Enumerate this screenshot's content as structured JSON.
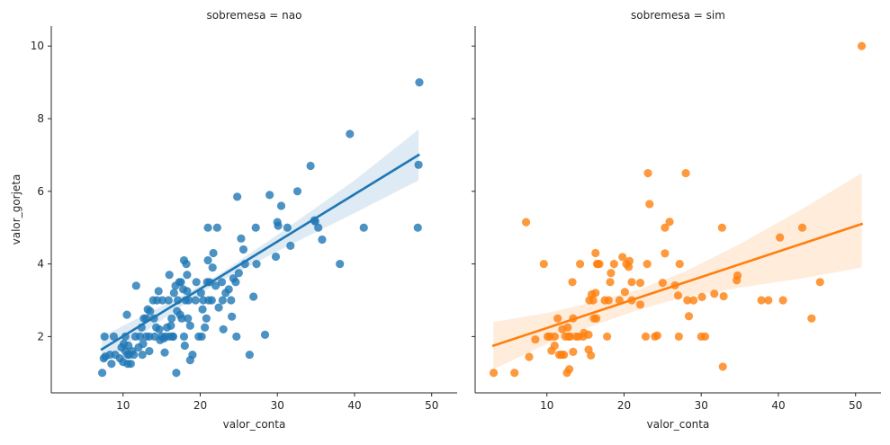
{
  "chart_data": {
    "type": "scatter",
    "layout": "facet-grid-1x2 with linear regression fit and confidence band",
    "xlabel": "valor_conta",
    "ylabel": "valor_gorjeta",
    "xlim": [
      0.7,
      53.3
    ],
    "ylim": [
      0.45,
      10.55
    ],
    "x_ticks": [
      10,
      20,
      30,
      40,
      50
    ],
    "y_ticks": [
      2,
      4,
      6,
      8,
      10
    ],
    "shared_y": true,
    "panels": [
      {
        "title": "sobremesa = nao",
        "color": "#1f77b4",
        "regression": {
          "x_start": 7.25,
          "y_start": 1.65,
          "x_end": 48.3,
          "y_end": 7.0
        },
        "ci_band": [
          {
            "x": 7.25,
            "lo": 1.3,
            "hi": 2.0
          },
          {
            "x": 17.0,
            "lo": 2.75,
            "hi": 3.05
          },
          {
            "x": 22.0,
            "lo": 3.45,
            "hi": 3.65
          },
          {
            "x": 30.0,
            "lo": 4.35,
            "hi": 4.8
          },
          {
            "x": 40.0,
            "lo": 5.4,
            "hi": 6.3
          },
          {
            "x": 48.3,
            "lo": 6.3,
            "hi": 7.7
          }
        ],
        "points": [
          [
            7.3,
            1.0
          ],
          [
            7.5,
            1.4
          ],
          [
            7.6,
            2.0
          ],
          [
            7.7,
            1.45
          ],
          [
            8.3,
            1.5
          ],
          [
            8.5,
            1.25
          ],
          [
            8.8,
            2.0
          ],
          [
            9.0,
            1.5
          ],
          [
            9.6,
            1.4
          ],
          [
            9.8,
            1.7
          ],
          [
            10.0,
            1.3
          ],
          [
            10.1,
            1.8
          ],
          [
            10.3,
            1.6
          ],
          [
            10.3,
            2.0
          ],
          [
            10.5,
            2.6
          ],
          [
            10.6,
            1.25
          ],
          [
            10.6,
            1.5
          ],
          [
            10.7,
            1.75
          ],
          [
            10.8,
            1.5
          ],
          [
            11.0,
            1.25
          ],
          [
            11.2,
            1.6
          ],
          [
            11.4,
            1.5
          ],
          [
            11.6,
            2.0
          ],
          [
            11.7,
            3.4
          ],
          [
            12.0,
            1.7
          ],
          [
            12.2,
            2.0
          ],
          [
            12.4,
            2.25
          ],
          [
            12.5,
            1.5
          ],
          [
            12.6,
            1.8
          ],
          [
            12.7,
            2.5
          ],
          [
            13.0,
            2.0
          ],
          [
            13.0,
            2.5
          ],
          [
            13.2,
            2.75
          ],
          [
            13.4,
            2.0
          ],
          [
            13.4,
            1.6
          ],
          [
            13.5,
            2.7
          ],
          [
            13.9,
            3.0
          ],
          [
            14.0,
            2.5
          ],
          [
            14.1,
            2.0
          ],
          [
            14.3,
            2.25
          ],
          [
            14.4,
            3.0
          ],
          [
            14.6,
            3.25
          ],
          [
            14.7,
            2.2
          ],
          [
            14.8,
            1.9
          ],
          [
            15.0,
            2.0
          ],
          [
            15.1,
            3.0
          ],
          [
            15.3,
            1.95
          ],
          [
            15.4,
            1.56
          ],
          [
            15.5,
            2.0
          ],
          [
            15.7,
            2.25
          ],
          [
            15.9,
            3.0
          ],
          [
            16.0,
            2.0
          ],
          [
            16.0,
            3.7
          ],
          [
            16.2,
            2.3
          ],
          [
            16.3,
            2.5
          ],
          [
            16.4,
            2.0
          ],
          [
            16.5,
            2.0
          ],
          [
            16.6,
            3.2
          ],
          [
            16.8,
            3.4
          ],
          [
            16.9,
            1.0
          ],
          [
            17.0,
            2.7
          ],
          [
            17.1,
            3.0
          ],
          [
            17.3,
            3.5
          ],
          [
            17.4,
            2.6
          ],
          [
            17.5,
            3.5
          ],
          [
            17.6,
            2.5
          ],
          [
            17.8,
            3.3
          ],
          [
            17.9,
            2.0
          ],
          [
            17.9,
            4.1
          ],
          [
            18.0,
            1.75
          ],
          [
            18.1,
            3.0
          ],
          [
            18.2,
            4.0
          ],
          [
            18.3,
            3.7
          ],
          [
            18.3,
            3.25
          ],
          [
            18.4,
            2.5
          ],
          [
            18.5,
            3.0
          ],
          [
            18.7,
            2.3
          ],
          [
            18.7,
            1.35
          ],
          [
            19.0,
            1.5
          ],
          [
            19.4,
            3.0
          ],
          [
            19.5,
            3.5
          ],
          [
            19.8,
            2.0
          ],
          [
            20.1,
            3.2
          ],
          [
            20.2,
            2.0
          ],
          [
            20.3,
            2.75
          ],
          [
            20.4,
            3.0
          ],
          [
            20.6,
            2.25
          ],
          [
            20.8,
            2.5
          ],
          [
            20.9,
            3.5
          ],
          [
            21.0,
            5.0
          ],
          [
            21.0,
            4.1
          ],
          [
            21.1,
            3.0
          ],
          [
            21.2,
            3.5
          ],
          [
            21.5,
            3.0
          ],
          [
            21.6,
            3.9
          ],
          [
            21.7,
            4.3
          ],
          [
            22.0,
            3.4
          ],
          [
            22.2,
            5.0
          ],
          [
            22.4,
            2.8
          ],
          [
            22.8,
            3.5
          ],
          [
            22.9,
            3.0
          ],
          [
            23.0,
            2.2
          ],
          [
            23.3,
            3.2
          ],
          [
            23.7,
            3.3
          ],
          [
            24.0,
            3.0
          ],
          [
            24.1,
            2.55
          ],
          [
            24.3,
            3.6
          ],
          [
            24.6,
            3.5
          ],
          [
            24.7,
            2.0
          ],
          [
            24.8,
            5.85
          ],
          [
            25.0,
            3.75
          ],
          [
            25.3,
            4.7
          ],
          [
            25.6,
            4.4
          ],
          [
            25.8,
            4.0
          ],
          [
            26.4,
            1.5
          ],
          [
            26.9,
            3.1
          ],
          [
            27.2,
            5.0
          ],
          [
            27.3,
            4.0
          ],
          [
            28.4,
            2.05
          ],
          [
            29.0,
            5.9
          ],
          [
            29.8,
            4.2
          ],
          [
            30.0,
            5.15
          ],
          [
            30.1,
            5.05
          ],
          [
            30.5,
            5.6
          ],
          [
            31.3,
            5.0
          ],
          [
            31.7,
            4.5
          ],
          [
            32.6,
            6.0
          ],
          [
            34.3,
            6.7
          ],
          [
            34.8,
            5.2
          ],
          [
            34.9,
            5.17
          ],
          [
            35.3,
            5.0
          ],
          [
            35.8,
            4.67
          ],
          [
            38.1,
            4.0
          ],
          [
            39.4,
            7.58
          ],
          [
            41.2,
            5.0
          ],
          [
            48.2,
            5.0
          ],
          [
            48.3,
            6.73
          ],
          [
            48.4,
            9.0
          ]
        ]
      },
      {
        "title": "sobremesa = sim",
        "color": "#ff7f0e",
        "regression": {
          "x_start": 3.07,
          "y_start": 1.75,
          "x_end": 50.8,
          "y_end": 5.1
        },
        "ci_band": [
          {
            "x": 3.07,
            "lo": 1.1,
            "hi": 2.4
          },
          {
            "x": 10.0,
            "lo": 1.8,
            "hi": 2.65
          },
          {
            "x": 16.0,
            "lo": 2.3,
            "hi": 2.95
          },
          {
            "x": 22.0,
            "lo": 2.75,
            "hi": 3.3
          },
          {
            "x": 28.0,
            "lo": 3.1,
            "hi": 3.8
          },
          {
            "x": 35.0,
            "lo": 3.35,
            "hi": 4.55
          },
          {
            "x": 43.0,
            "lo": 3.6,
            "hi": 5.5
          },
          {
            "x": 50.8,
            "lo": 3.9,
            "hi": 6.5
          }
        ],
        "points": [
          [
            3.1,
            1.0
          ],
          [
            5.8,
            1.0
          ],
          [
            7.3,
            5.15
          ],
          [
            7.7,
            1.44
          ],
          [
            8.5,
            1.92
          ],
          [
            9.6,
            4.0
          ],
          [
            10.1,
            2.0
          ],
          [
            10.4,
            2.0
          ],
          [
            10.6,
            1.61
          ],
          [
            11.0,
            2.0
          ],
          [
            11.0,
            1.75
          ],
          [
            11.4,
            2.5
          ],
          [
            11.6,
            1.5
          ],
          [
            11.9,
            1.5
          ],
          [
            12.0,
            2.2
          ],
          [
            12.2,
            1.5
          ],
          [
            12.4,
            2.0
          ],
          [
            12.6,
            1.0
          ],
          [
            12.7,
            2.25
          ],
          [
            12.8,
            2.0
          ],
          [
            12.9,
            1.1
          ],
          [
            13.0,
            2.0
          ],
          [
            13.3,
            3.5
          ],
          [
            13.4,
            2.5
          ],
          [
            13.4,
            1.58
          ],
          [
            13.8,
            2.0
          ],
          [
            14.1,
            2.0
          ],
          [
            14.3,
            4.0
          ],
          [
            14.7,
            2.0
          ],
          [
            14.8,
            2.1
          ],
          [
            15.4,
            1.64
          ],
          [
            15.4,
            2.05
          ],
          [
            15.5,
            3.0
          ],
          [
            15.7,
            1.48
          ],
          [
            15.8,
            3.16
          ],
          [
            16.0,
            3.0
          ],
          [
            16.1,
            2.5
          ],
          [
            16.3,
            4.3
          ],
          [
            16.3,
            3.2
          ],
          [
            16.4,
            2.5
          ],
          [
            16.5,
            4.0
          ],
          [
            16.6,
            4.0
          ],
          [
            16.8,
            4.0
          ],
          [
            17.5,
            3.0
          ],
          [
            17.8,
            2.0
          ],
          [
            18.0,
            3.0
          ],
          [
            18.2,
            3.5
          ],
          [
            18.3,
            3.75
          ],
          [
            18.7,
            4.0
          ],
          [
            19.4,
            3.0
          ],
          [
            19.8,
            4.19
          ],
          [
            20.1,
            3.23
          ],
          [
            20.3,
            4.0
          ],
          [
            20.6,
            3.92
          ],
          [
            20.7,
            4.08
          ],
          [
            21.0,
            3.5
          ],
          [
            21.0,
            3.0
          ],
          [
            22.1,
            2.88
          ],
          [
            22.1,
            3.48
          ],
          [
            22.8,
            2.0
          ],
          [
            23.0,
            4.0
          ],
          [
            23.1,
            6.5
          ],
          [
            23.3,
            5.65
          ],
          [
            24.0,
            2.0
          ],
          [
            24.3,
            2.03
          ],
          [
            25.0,
            3.48
          ],
          [
            25.3,
            4.29
          ],
          [
            25.3,
            5.0
          ],
          [
            25.9,
            5.16
          ],
          [
            26.6,
            3.41
          ],
          [
            27.0,
            3.13
          ],
          [
            27.1,
            2.0
          ],
          [
            27.2,
            4.0
          ],
          [
            28.0,
            6.5
          ],
          [
            28.2,
            3.0
          ],
          [
            28.4,
            2.56
          ],
          [
            29.0,
            3.0
          ],
          [
            30.0,
            2.0
          ],
          [
            30.1,
            3.09
          ],
          [
            30.5,
            2.0
          ],
          [
            31.7,
            3.18
          ],
          [
            32.7,
            5.0
          ],
          [
            32.8,
            1.17
          ],
          [
            32.9,
            3.11
          ],
          [
            34.6,
            3.55
          ],
          [
            34.7,
            3.68
          ],
          [
            37.8,
            3.0
          ],
          [
            38.7,
            3.0
          ],
          [
            40.2,
            4.73
          ],
          [
            40.6,
            3.0
          ],
          [
            43.1,
            5.0
          ],
          [
            44.3,
            2.5
          ],
          [
            45.4,
            3.5
          ],
          [
            50.8,
            10.0
          ]
        ]
      }
    ]
  }
}
